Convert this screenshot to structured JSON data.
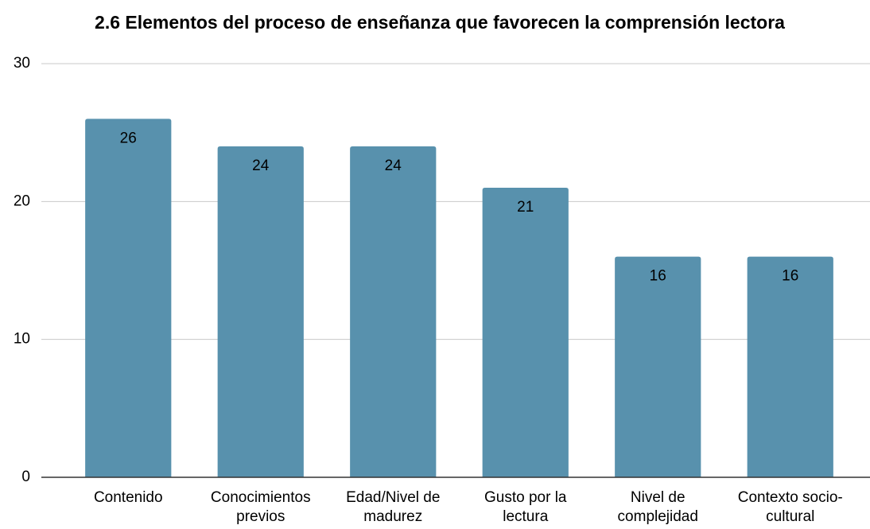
{
  "chart_data": {
    "type": "bar",
    "title": "2.6 Elementos del proceso de enseñanza que favorecen la comprensión lectora",
    "categories": [
      "Contenido",
      "Conocimientos previos",
      "Edad/Nivel de madurez",
      "Gusto por la lectura",
      "Nivel de complejidad",
      "Contexto socio-cultural"
    ],
    "values": [
      26,
      24,
      24,
      21,
      16,
      16
    ],
    "color": "#5891ad",
    "ylim": [
      0,
      30
    ],
    "yticks": [
      0,
      10,
      20,
      30
    ],
    "grid": true
  }
}
